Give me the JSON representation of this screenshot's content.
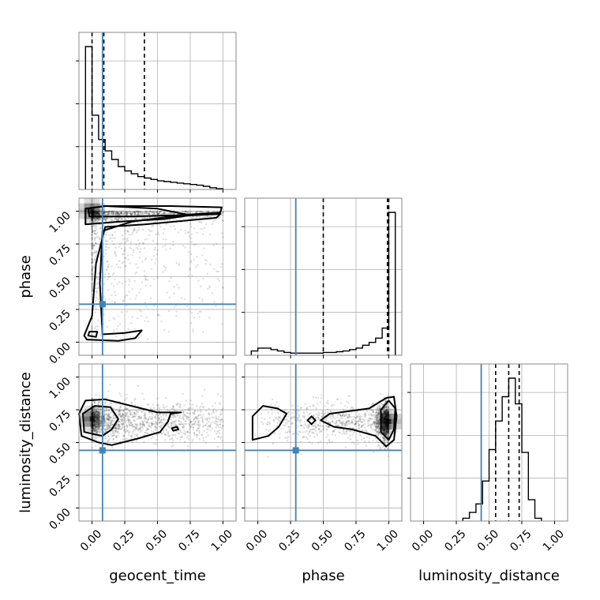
{
  "chart_data": {
    "type": "corner",
    "parameters": [
      "geocent_time",
      "phase",
      "luminosity_distance"
    ],
    "tick_values": [
      0.0,
      0.25,
      0.5,
      0.75,
      1.0
    ],
    "tick_labels": [
      "0.00",
      "0.25",
      "0.50",
      "0.75",
      "1.00"
    ],
    "range": [
      -0.1,
      1.1
    ],
    "grid": true,
    "truth_color": "#4682b4",
    "truths": {
      "geocent_time": 0.08,
      "phase": 0.29,
      "luminosity_distance": 0.44
    },
    "histograms": {
      "geocent_time": {
        "bin_edges": [
          -0.05,
          0.0,
          0.05,
          0.1,
          0.15,
          0.2,
          0.25,
          0.3,
          0.35,
          0.4,
          0.45,
          0.5,
          0.55,
          0.6,
          0.65,
          0.7,
          0.75,
          0.8,
          0.85,
          0.9,
          0.95,
          1.0
        ],
        "counts": [
          1.0,
          0.52,
          0.35,
          0.27,
          0.21,
          0.16,
          0.13,
          0.11,
          0.09,
          0.08,
          0.07,
          0.06,
          0.055,
          0.05,
          0.045,
          0.04,
          0.035,
          0.03,
          0.022,
          0.012,
          0.006
        ],
        "quantiles": [
          0.0,
          0.09,
          0.4
        ]
      },
      "phase": {
        "bin_edges": [
          -0.05,
          0.0,
          0.05,
          0.1,
          0.15,
          0.2,
          0.25,
          0.3,
          0.35,
          0.4,
          0.45,
          0.5,
          0.55,
          0.6,
          0.65,
          0.7,
          0.75,
          0.8,
          0.85,
          0.9,
          0.95,
          1.0,
          1.05
        ],
        "counts": [
          0.03,
          0.05,
          0.05,
          0.04,
          0.03,
          0.02,
          0.015,
          0.015,
          0.015,
          0.015,
          0.015,
          0.02,
          0.02,
          0.025,
          0.03,
          0.04,
          0.05,
          0.07,
          0.09,
          0.12,
          0.19,
          1.0
        ],
        "quantiles": [
          0.5,
          0.99,
          1.0
        ]
      },
      "luminosity_distance": {
        "bin_edges": [
          0.3,
          0.35,
          0.4,
          0.45,
          0.5,
          0.55,
          0.6,
          0.65,
          0.7,
          0.75,
          0.8,
          0.85,
          0.9
        ],
        "counts": [
          0.02,
          0.06,
          0.12,
          0.28,
          0.5,
          0.7,
          0.87,
          1.0,
          0.82,
          0.48,
          0.15,
          0.02
        ],
        "quantiles": [
          0.55,
          0.65,
          0.73
        ]
      }
    },
    "density_peaks": {
      "geocent_time|phase": [
        0.0,
        1.0
      ],
      "geocent_time|luminosity_distance": [
        0.0,
        0.68
      ],
      "phase|luminosity_distance": [
        1.0,
        0.66
      ]
    }
  }
}
